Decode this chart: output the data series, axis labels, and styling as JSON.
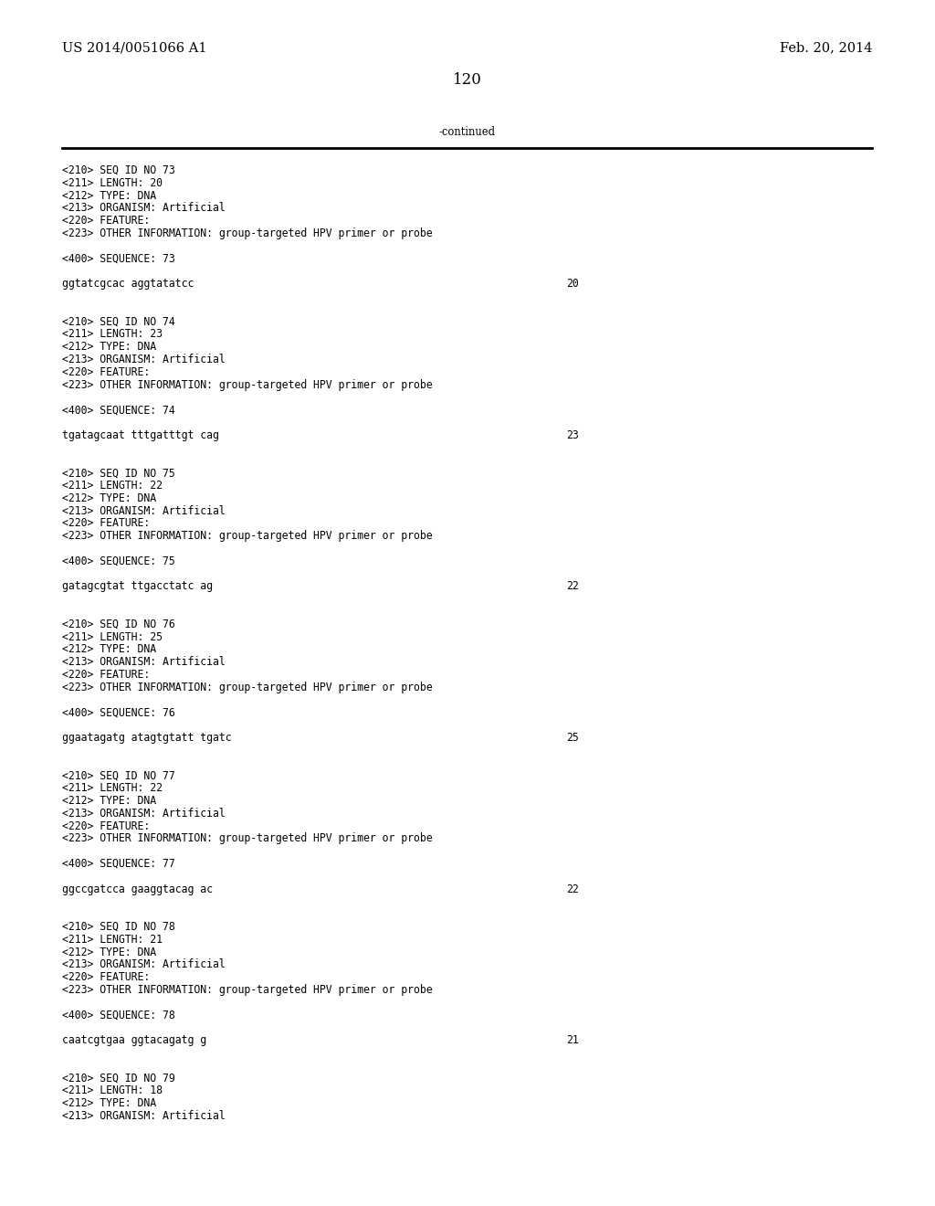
{
  "header_left": "US 2014/0051066 A1",
  "header_right": "Feb. 20, 2014",
  "page_number": "120",
  "continued_label": "-continued",
  "background_color": "#ffffff",
  "text_color": "#000000",
  "font_size_header": 10.5,
  "font_size_page": 12,
  "font_size_body": 8.3,
  "sequence_entries": [
    {
      "seq_id": "73",
      "length": "20",
      "type": "DNA",
      "organism": "Artificial",
      "has_feature": true,
      "other_info": "group-targeted HPV primer or probe",
      "sequence": "ggtatcgcac aggtatatcc",
      "seq_len_num": "20"
    },
    {
      "seq_id": "74",
      "length": "23",
      "type": "DNA",
      "organism": "Artificial",
      "has_feature": true,
      "other_info": "group-targeted HPV primer or probe",
      "sequence": "tgatagcaat tttgatttgt cag",
      "seq_len_num": "23"
    },
    {
      "seq_id": "75",
      "length": "22",
      "type": "DNA",
      "organism": "Artificial",
      "has_feature": true,
      "other_info": "group-targeted HPV primer or probe",
      "sequence": "gatagcgtat ttgacctatc ag",
      "seq_len_num": "22"
    },
    {
      "seq_id": "76",
      "length": "25",
      "type": "DNA",
      "organism": "Artificial",
      "has_feature": true,
      "other_info": "group-targeted HPV primer or probe",
      "sequence": "ggaatagatg atagtgtatt tgatc",
      "seq_len_num": "25"
    },
    {
      "seq_id": "77",
      "length": "22",
      "type": "DNA",
      "organism": "Artificial",
      "has_feature": true,
      "other_info": "group-targeted HPV primer or probe",
      "sequence": "ggccgatcca gaaggtacag ac",
      "seq_len_num": "22"
    },
    {
      "seq_id": "78",
      "length": "21",
      "type": "DNA",
      "organism": "Artificial",
      "has_feature": true,
      "other_info": "group-targeted HPV primer or probe",
      "sequence": "caatcgtgaa ggtacagatg g",
      "seq_len_num": "21"
    },
    {
      "seq_id": "79",
      "length": "18",
      "type": "DNA",
      "organism": "Artificial",
      "has_feature": false,
      "other_info": "",
      "sequence": "",
      "seq_len_num": ""
    }
  ]
}
